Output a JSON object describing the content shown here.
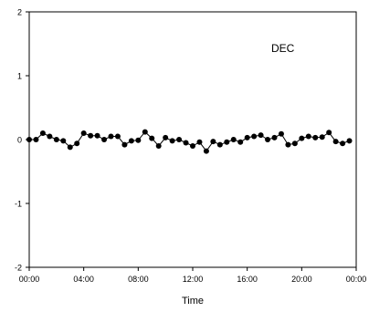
{
  "chart_data": {
    "type": "line",
    "annotation": "DEC",
    "xlabel": "Time",
    "ylabel": "",
    "ylim": [
      -2,
      2
    ],
    "xlim_hours": [
      0,
      24
    ],
    "yticks": [
      -2,
      -1,
      0,
      1,
      2
    ],
    "ytick_labels": [
      "-2",
      "-1",
      "0",
      "1",
      "2"
    ],
    "xticks_hours": [
      0,
      4,
      8,
      12,
      16,
      20,
      24
    ],
    "xtick_labels": [
      "00:00",
      "04:00",
      "08:00",
      "12:00",
      "16:00",
      "20:00",
      "00:00"
    ],
    "grid": false,
    "marker": "filled-circle",
    "colors": {
      "line": "#000000",
      "marker": "#000000",
      "axis": "#000000"
    },
    "series": [
      {
        "x_hours": [
          0,
          0.5,
          1,
          1.5,
          2,
          2.5,
          3,
          3.5,
          4,
          4.5,
          5,
          5.5,
          6,
          6.5,
          7,
          7.5,
          8,
          8.5,
          9,
          9.5,
          10,
          10.5,
          11,
          11.5,
          12,
          12.5,
          13,
          13.5,
          14,
          14.5,
          15,
          15.5,
          16,
          16.5,
          17,
          17.5,
          18,
          18.5,
          19,
          19.5,
          20,
          20.5,
          21,
          21.5,
          22,
          22.5,
          23,
          23.5
        ],
        "values": [
          0.0,
          0.0,
          0.1,
          0.05,
          0.0,
          -0.02,
          -0.12,
          -0.06,
          0.1,
          0.06,
          0.06,
          0.0,
          0.05,
          0.05,
          -0.08,
          -0.02,
          -0.01,
          0.12,
          0.02,
          -0.1,
          0.03,
          -0.02,
          0.0,
          -0.05,
          -0.1,
          -0.04,
          -0.18,
          -0.03,
          -0.08,
          -0.04,
          0.0,
          -0.04,
          0.03,
          0.05,
          0.07,
          0.0,
          0.03,
          0.09,
          -0.08,
          -0.06,
          0.02,
          0.05,
          0.03,
          0.04,
          0.11,
          -0.03,
          -0.06,
          -0.02
        ]
      }
    ]
  }
}
